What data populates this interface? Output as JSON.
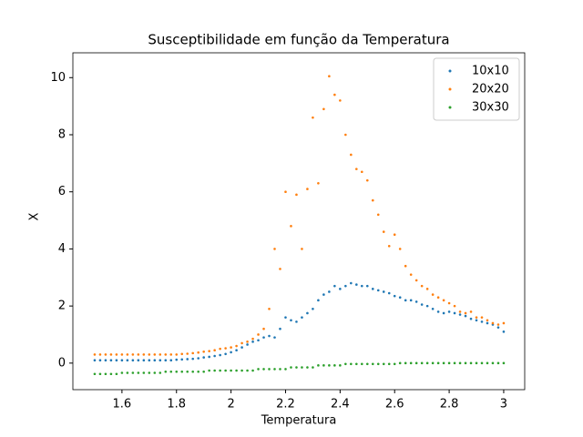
{
  "chart_data": {
    "type": "scatter",
    "title": "Susceptibilidade em função da Temperatura",
    "xlabel": "Temperatura",
    "ylabel": "X",
    "x": [
      1.5,
      1.52,
      1.54,
      1.56,
      1.58,
      1.6,
      1.62,
      1.64,
      1.66,
      1.68,
      1.7,
      1.72,
      1.74,
      1.76,
      1.78,
      1.8,
      1.82,
      1.84,
      1.86,
      1.88,
      1.9,
      1.92,
      1.94,
      1.96,
      1.98,
      2.0,
      2.02,
      2.04,
      2.06,
      2.08,
      2.1,
      2.12,
      2.14,
      2.16,
      2.18,
      2.2,
      2.22,
      2.24,
      2.26,
      2.28,
      2.3,
      2.32,
      2.34,
      2.36,
      2.38,
      2.4,
      2.42,
      2.44,
      2.46,
      2.48,
      2.5,
      2.52,
      2.54,
      2.56,
      2.58,
      2.6,
      2.62,
      2.64,
      2.66,
      2.68,
      2.7,
      2.72,
      2.74,
      2.76,
      2.78,
      2.8,
      2.82,
      2.84,
      2.86,
      2.88,
      2.9,
      2.92,
      2.94,
      2.96,
      2.98,
      3.0
    ],
    "series": [
      {
        "name": "10x10",
        "color": "#1f77b4",
        "values": [
          0.1,
          0.1,
          0.1,
          0.1,
          0.1,
          0.1,
          0.1,
          0.1,
          0.1,
          0.1,
          0.1,
          0.1,
          0.1,
          0.1,
          0.1,
          0.12,
          0.13,
          0.14,
          0.15,
          0.17,
          0.2,
          0.22,
          0.25,
          0.28,
          0.32,
          0.38,
          0.45,
          0.55,
          0.65,
          0.75,
          0.8,
          0.9,
          0.95,
          0.9,
          1.2,
          1.6,
          1.5,
          1.45,
          1.6,
          1.75,
          1.9,
          2.2,
          2.4,
          2.5,
          2.7,
          2.6,
          2.7,
          2.8,
          2.75,
          2.7,
          2.7,
          2.6,
          2.55,
          2.5,
          2.45,
          2.35,
          2.3,
          2.2,
          2.2,
          2.15,
          2.05,
          2.0,
          1.9,
          1.8,
          1.75,
          1.8,
          1.75,
          1.7,
          1.65,
          1.55,
          1.5,
          1.45,
          1.4,
          1.35,
          1.25,
          1.1
        ]
      },
      {
        "name": "20x20",
        "color": "#ff7f0e",
        "values": [
          0.3,
          0.3,
          0.3,
          0.3,
          0.3,
          0.3,
          0.3,
          0.3,
          0.3,
          0.3,
          0.3,
          0.3,
          0.3,
          0.3,
          0.3,
          0.3,
          0.32,
          0.33,
          0.35,
          0.37,
          0.4,
          0.42,
          0.45,
          0.5,
          0.52,
          0.55,
          0.6,
          0.7,
          0.75,
          0.85,
          1.0,
          1.2,
          1.9,
          4.0,
          3.3,
          6.0,
          4.8,
          5.9,
          4.0,
          6.1,
          8.6,
          6.3,
          8.9,
          10.05,
          9.4,
          9.2,
          8.0,
          7.3,
          6.8,
          6.7,
          6.4,
          5.7,
          5.2,
          4.6,
          4.1,
          4.5,
          4.0,
          3.4,
          3.1,
          2.9,
          2.7,
          2.6,
          2.4,
          2.3,
          2.2,
          2.1,
          2.0,
          1.8,
          1.75,
          1.8,
          1.6,
          1.6,
          1.5,
          1.4,
          1.35,
          1.4
        ]
      },
      {
        "name": "30x30",
        "color": "#2ca02c",
        "values": [
          -0.38,
          -0.38,
          -0.38,
          -0.38,
          -0.38,
          -0.34,
          -0.34,
          -0.34,
          -0.34,
          -0.34,
          -0.34,
          -0.34,
          -0.34,
          -0.3,
          -0.3,
          -0.3,
          -0.3,
          -0.3,
          -0.3,
          -0.3,
          -0.3,
          -0.26,
          -0.26,
          -0.26,
          -0.26,
          -0.26,
          -0.26,
          -0.26,
          -0.26,
          -0.26,
          -0.21,
          -0.21,
          -0.21,
          -0.21,
          -0.21,
          -0.21,
          -0.15,
          -0.15,
          -0.15,
          -0.15,
          -0.15,
          -0.08,
          -0.08,
          -0.08,
          -0.08,
          -0.08,
          -0.03,
          -0.03,
          -0.03,
          -0.03,
          -0.03,
          -0.03,
          -0.03,
          -0.03,
          -0.03,
          -0.03,
          0,
          0,
          0,
          0,
          0,
          0,
          0,
          0,
          0,
          0,
          0,
          0,
          0,
          0,
          0,
          0,
          0,
          0,
          0,
          0
        ]
      }
    ],
    "xlim": [
      1.42,
      3.077
    ],
    "xticks": [
      1.6,
      1.8,
      2.0,
      2.2,
      2.4,
      2.6,
      2.8,
      3.0
    ],
    "ylim": [
      -0.93,
      10.87
    ],
    "yticks": [
      0,
      2,
      4,
      6,
      8,
      10
    ],
    "legend": "upper right"
  }
}
